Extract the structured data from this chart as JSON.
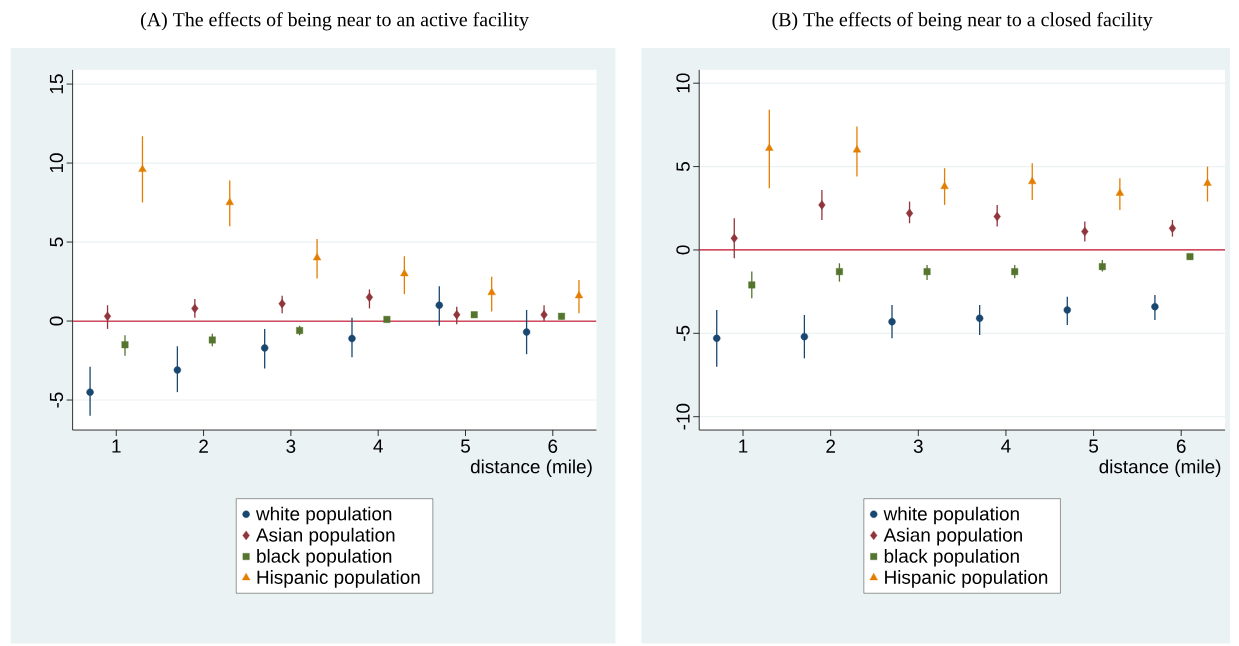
{
  "chart_data": [
    {
      "type": "scatter",
      "title": "(A) The effects of being near to an active facility",
      "xlabel": "distance (mile)",
      "xlim": [
        0.5,
        6.5
      ],
      "xticks": [
        1,
        2,
        3,
        4,
        5,
        6
      ],
      "ylim": [
        -6.9,
        15.9
      ],
      "yticks": [
        -5,
        0,
        5,
        10,
        15
      ],
      "grid": "y",
      "legend": "bottom",
      "ref_lines": [
        {
          "axis": "y",
          "value": 0,
          "color": "#c8102e"
        }
      ],
      "series": [
        {
          "name": "white population",
          "color": "#1a476f",
          "marker": "circle",
          "x": [
            0.7,
            1.7,
            2.7,
            3.7,
            4.7,
            5.7
          ],
          "values": [
            -4.5,
            -3.1,
            -1.7,
            -1.1,
            1.0,
            -0.7
          ],
          "errors": [
            [
              -6.0,
              -2.9
            ],
            [
              -4.5,
              -1.6
            ],
            [
              -3.0,
              -0.5
            ],
            [
              -2.3,
              0.2
            ],
            [
              -0.3,
              2.2
            ],
            [
              -2.1,
              0.7
            ]
          ]
        },
        {
          "name": "Asian population",
          "color": "#90353b",
          "marker": "diamond",
          "x": [
            0.9,
            1.9,
            2.9,
            3.9,
            4.9,
            5.9
          ],
          "values": [
            0.3,
            0.8,
            1.1,
            1.5,
            0.4,
            0.4
          ],
          "errors": [
            [
              -0.5,
              1.0
            ],
            [
              0.2,
              1.4
            ],
            [
              0.5,
              1.6
            ],
            [
              0.8,
              2.0
            ],
            [
              -0.2,
              0.9
            ],
            [
              0.0,
              1.0
            ]
          ]
        },
        {
          "name": "black population",
          "color": "#55752f",
          "marker": "square",
          "x": [
            1.1,
            2.1,
            3.1,
            4.1,
            5.1,
            6.1
          ],
          "values": [
            -1.5,
            -1.2,
            -0.6,
            0.1,
            0.4,
            0.3
          ],
          "errors": [
            [
              -2.2,
              -0.9
            ],
            [
              -1.6,
              -0.8
            ],
            [
              -0.9,
              -0.3
            ],
            [
              -0.1,
              0.3
            ],
            [
              0.2,
              0.5
            ],
            [
              0.1,
              0.5
            ]
          ]
        },
        {
          "name": "Hispanic population",
          "color": "#e37e00",
          "marker": "triangle",
          "x": [
            1.3,
            2.3,
            3.3,
            4.3,
            5.3,
            6.3
          ],
          "values": [
            9.6,
            7.5,
            4.0,
            3.0,
            1.8,
            1.6
          ],
          "errors": [
            [
              7.5,
              11.7
            ],
            [
              6.0,
              8.9
            ],
            [
              2.7,
              5.2
            ],
            [
              1.7,
              4.1
            ],
            [
              0.6,
              2.8
            ],
            [
              0.5,
              2.6
            ]
          ]
        }
      ]
    },
    {
      "type": "scatter",
      "title": "(B) The effects of being near to a closed facility",
      "xlabel": "distance (mile)",
      "xlim": [
        0.5,
        6.5
      ],
      "xticks": [
        1,
        2,
        3,
        4,
        5,
        6
      ],
      "ylim": [
        -10.8,
        10.8
      ],
      "yticks": [
        -10,
        -5,
        0,
        5,
        10
      ],
      "grid": "y",
      "legend": "bottom",
      "ref_lines": [
        {
          "axis": "y",
          "value": 0,
          "color": "#c8102e"
        }
      ],
      "series": [
        {
          "name": "white population",
          "color": "#1a476f",
          "marker": "circle",
          "x": [
            0.7,
            1.7,
            2.7,
            3.7,
            4.7,
            5.7
          ],
          "values": [
            -5.3,
            -5.2,
            -4.3,
            -4.1,
            -3.6,
            -3.4
          ],
          "errors": [
            [
              -7.0,
              -3.6
            ],
            [
              -6.5,
              -3.9
            ],
            [
              -5.3,
              -3.3
            ],
            [
              -5.1,
              -3.3
            ],
            [
              -4.5,
              -2.8
            ],
            [
              -4.2,
              -2.7
            ]
          ]
        },
        {
          "name": "Asian population",
          "color": "#90353b",
          "marker": "diamond",
          "x": [
            0.9,
            1.9,
            2.9,
            3.9,
            4.9,
            5.9
          ],
          "values": [
            0.7,
            2.7,
            2.2,
            2.0,
            1.1,
            1.3
          ],
          "errors": [
            [
              -0.5,
              1.9
            ],
            [
              1.8,
              3.6
            ],
            [
              1.6,
              2.9
            ],
            [
              1.4,
              2.7
            ],
            [
              0.5,
              1.7
            ],
            [
              0.8,
              1.8
            ]
          ]
        },
        {
          "name": "black population",
          "color": "#55752f",
          "marker": "square",
          "x": [
            1.1,
            2.1,
            3.1,
            4.1,
            5.1,
            6.1
          ],
          "values": [
            -2.1,
            -1.3,
            -1.3,
            -1.3,
            -1.0,
            -0.4
          ],
          "errors": [
            [
              -2.9,
              -1.3
            ],
            [
              -1.9,
              -0.8
            ],
            [
              -1.8,
              -0.9
            ],
            [
              -1.7,
              -0.9
            ],
            [
              -1.3,
              -0.6
            ],
            [
              -0.6,
              -0.3
            ]
          ]
        },
        {
          "name": "Hispanic population",
          "color": "#e37e00",
          "marker": "triangle",
          "x": [
            1.3,
            2.3,
            3.3,
            4.3,
            5.3,
            6.3
          ],
          "values": [
            6.1,
            6.0,
            3.8,
            4.1,
            3.4,
            4.0
          ],
          "errors": [
            [
              3.7,
              8.4
            ],
            [
              4.4,
              7.4
            ],
            [
              2.7,
              4.9
            ],
            [
              3.0,
              5.2
            ],
            [
              2.4,
              4.3
            ],
            [
              2.9,
              5.0
            ]
          ]
        }
      ]
    }
  ]
}
